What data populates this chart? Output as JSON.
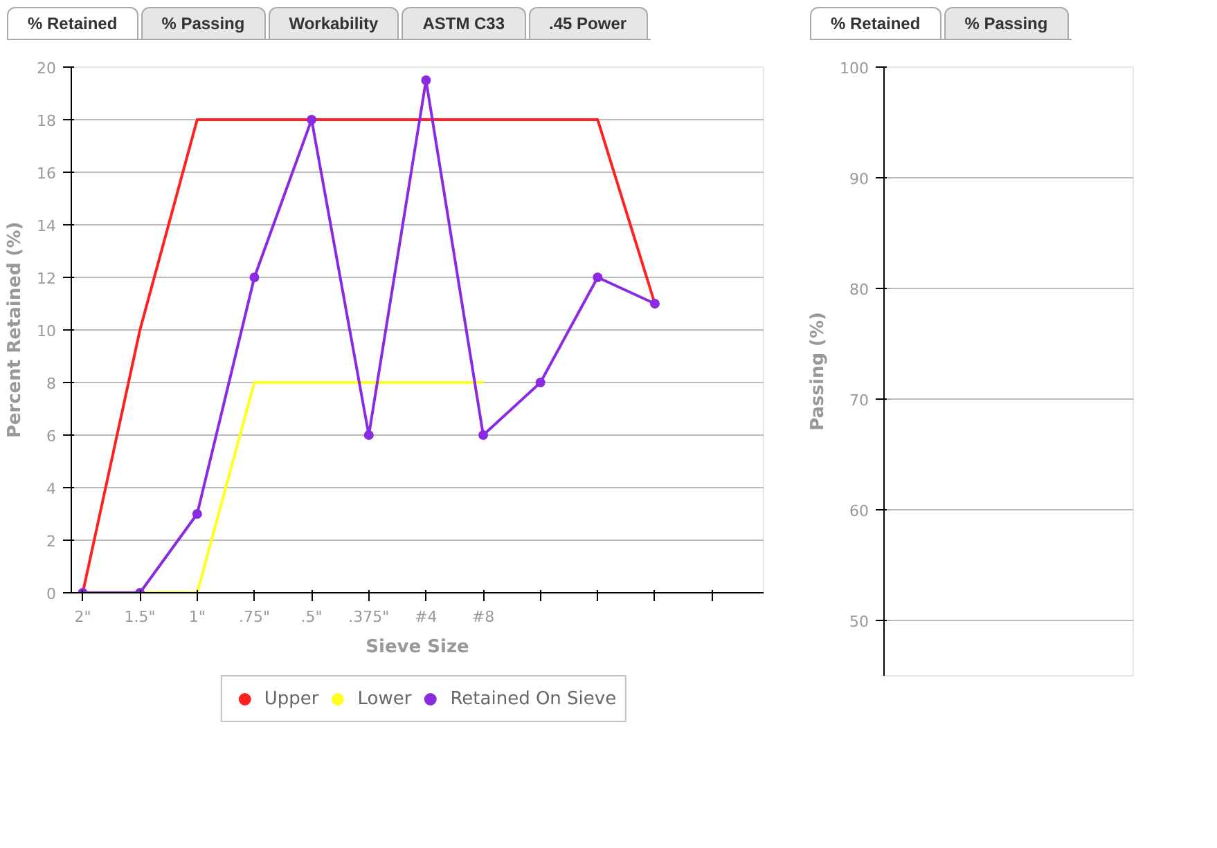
{
  "chart_data": [
    {
      "type": "line",
      "annotations": [
        "% Retained",
        "% Passing",
        "Workability",
        "ASTM C33",
        ".45 Power"
      ],
      "xlabel": "Sieve Size",
      "ylabel": "Percent Retained (%)",
      "categories": [
        "2\"",
        "1.5\"",
        "1\"",
        ".75\"",
        ".5\"",
        ".375\"",
        "#4",
        "#8",
        null,
        null,
        null,
        null
      ],
      "ylim": [
        0,
        20
      ],
      "yticks": [
        0,
        2,
        4,
        6,
        8,
        10,
        12,
        14,
        16,
        18,
        20
      ],
      "grid": "y",
      "legend": "bottom",
      "series": [
        {
          "name": "Upper",
          "color": "#ff2020",
          "marker": "none",
          "values": [
            0,
            10,
            18,
            18,
            18,
            18,
            18,
            18,
            18,
            18,
            11,
            null
          ]
        },
        {
          "name": "Lower",
          "color": "#ffff20",
          "marker": "none",
          "values": [
            0,
            0,
            0,
            8,
            8,
            8,
            8,
            8,
            null,
            null,
            null,
            null
          ]
        },
        {
          "name": "Retained On Sieve",
          "color": "#8a2be2",
          "marker": "circle",
          "values": [
            0,
            0,
            3,
            12,
            18,
            6,
            19.5,
            6,
            8,
            12,
            11,
            null
          ]
        }
      ]
    },
    {
      "type": "line",
      "annotations": [
        "% Retained",
        "% Passing"
      ],
      "categories": [
        null,
        null,
        null,
        null
      ],
      "ylabel": "Passing (%)",
      "ylim": [
        45,
        100
      ],
      "yticks": [
        50,
        60,
        70,
        80,
        90,
        100
      ],
      "grid": "y",
      "tick_labels": "y"
    }
  ]
}
